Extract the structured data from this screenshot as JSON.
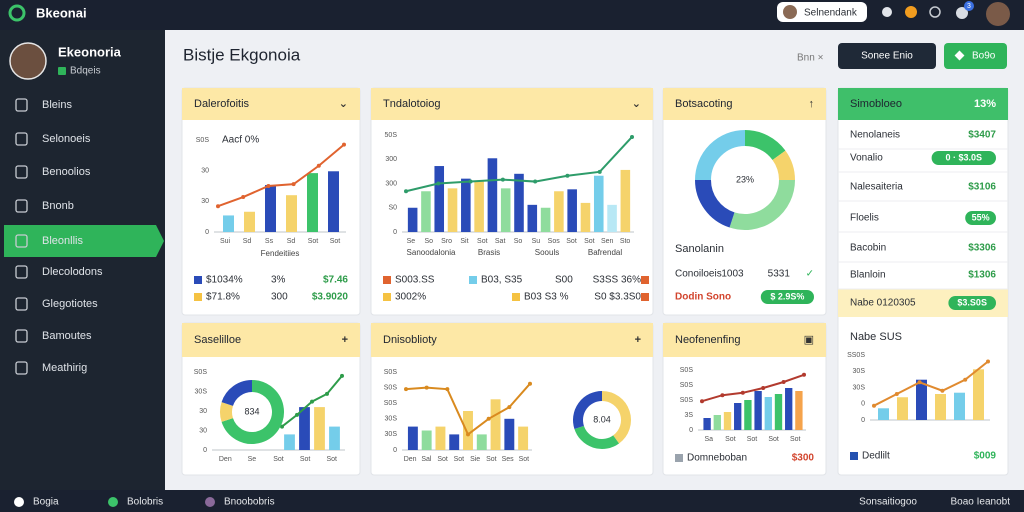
{
  "topbar": {
    "logo": "Bkeonai",
    "search": "Selnendank",
    "badge": "3"
  },
  "sidebar": {
    "user": "Ekeonoria",
    "user_sub": "Bdqeis",
    "items": [
      "Bleins",
      "Selonoeis",
      "Benoolios",
      "Bnonb",
      "Bleonllis",
      "Dlecolodons",
      "Glegotiotes",
      "Bamoutes",
      "Meathirig"
    ],
    "active": 4
  },
  "header": {
    "title": "Bistje Ekgonoia",
    "close": "Bnn ×",
    "primary": "Sonee Enio",
    "secondary": "Bo9o"
  },
  "cards": [
    {
      "title": "Dalerofoitis",
      "icon": "⌄",
      "note": "Aacf 0%",
      "chart": {
        "ylim": [
          0,
          100
        ],
        "ylabels": [
          "S0S",
          "30",
          "30",
          "0"
        ],
        "xlabels": [
          "Sui",
          "Sd",
          "Ss",
          "Sd",
          "Sot",
          "Sot"
        ],
        "xtitle": "Fendeitiies",
        "bars": [
          18,
          22,
          51,
          40,
          64,
          66
        ],
        "bar_colors": [
          "#74cdea",
          "#f5d36b",
          "#2a4bb8",
          "#f5d36b",
          "#3cc36a",
          "#2a4bb8"
        ],
        "line": [
          28,
          38,
          50,
          52,
          72,
          95
        ],
        "line_color": "#e0632f"
      },
      "legend": [
        [
          {
            "text": "$1034%",
            "chip": "#2a4bb8"
          },
          {
            "text": "3%"
          },
          {
            "text": "$7.46",
            "color": "#2e9c4a"
          }
        ],
        [
          {
            "text": "$71.8%",
            "chip": "#f5c242"
          },
          {
            "text": "300"
          },
          {
            "text": "$3.9020",
            "color": "#2e9c4a"
          }
        ]
      ]
    },
    {
      "title": "Tndalotoiog",
      "icon": "⌄",
      "chart": {
        "ylim": [
          0,
          100
        ],
        "ylabels": [
          "50S",
          "300",
          "300",
          "S0",
          "0"
        ],
        "xlabels": [
          "Se",
          "So",
          "Sro",
          "Sit",
          "Sot",
          "Sat",
          "So",
          "Su",
          "Sos",
          "Sot",
          "Sot",
          "Sen",
          "Sto"
        ],
        "sublabels": [
          "Sanoodalonia",
          "Brasis",
          "Soouls",
          "Bafrendal"
        ],
        "bars": [
          25,
          42,
          68,
          45,
          55,
          52,
          76,
          45,
          60,
          28,
          25,
          42,
          44,
          30,
          58,
          28,
          64
        ],
        "bar_colors": [
          "#2a4bb8",
          "#8fdc9d",
          "#2a4bb8",
          "#f5d36b",
          "#2a4bb8",
          "#f5d36b",
          "#2a4bb8",
          "#8fdc9d",
          "#2a4bb8",
          "#2a4bb8",
          "#8fdc9d",
          "#f5d36b",
          "#2a4bb8",
          "#f5d36b",
          "#74cdea",
          "#b8e8f5",
          "#f5d36b"
        ],
        "line": [
          42,
          50,
          52,
          54,
          52,
          58,
          62,
          98
        ],
        "line_color": "#2e9c6a"
      },
      "legend": [
        [
          {
            "text": "S003.SS",
            "chip": "#e0632f"
          },
          {
            "text": "B03, S35",
            "chip": "#74cdea"
          },
          {
            "text": "S00"
          },
          {
            "text": "S3SS 36%",
            "chip": "#e0632f"
          }
        ],
        [
          {
            "text": "3002%",
            "chip": "#f5c242"
          },
          {
            "text": "B03 S3 %",
            "chip": "#f5c242"
          },
          {
            "text": "S0 $3.3S0",
            "chip": "#e0632f"
          }
        ]
      ]
    },
    {
      "title": "Botsacoting",
      "icon": "↑",
      "donut": {
        "center": "23%",
        "values": [
          15,
          10,
          30,
          20,
          25
        ],
        "colors": [
          "#3cc36a",
          "#f5d36b",
          "#8fdc9d",
          "#2a4bb8",
          "#74cdea"
        ]
      },
      "subtitle": "Sanolanin",
      "legend": [
        [
          {
            "text": "Conoiloeis"
          },
          {
            "text": "1003"
          },
          {
            "text": "5331"
          },
          {
            "text": "✓",
            "color": "#2fb45a"
          }
        ],
        [
          {
            "text": "Dodin Sono",
            "color": "#d2452e"
          },
          {
            "text": "$ 2.9S%",
            "pill": "#2fb45a"
          }
        ]
      ]
    },
    {
      "title": "Simobloeo",
      "icon": "13%",
      "highlight_row": 6,
      "legend": [
        [
          {
            "text": "Nenolaneis"
          },
          {
            "text": "$3407",
            "color": "#2e9c4a"
          }
        ],
        [
          {
            "text": "Vonalio"
          },
          {
            "text": "0 · $3.0S",
            "pill": "#2fb45a"
          }
        ],
        [
          {
            "text": "Nalesaiteria"
          },
          {
            "text": "$3106",
            "color": "#2e9c4a"
          }
        ],
        [
          {
            "text": "Floelis"
          },
          {
            "text": "55%",
            "pill": "#2fb45a"
          }
        ],
        [
          {
            "text": "Bacobin"
          },
          {
            "text": "$3306",
            "color": "#2e9c4a"
          }
        ],
        [
          {
            "text": "Blanloin"
          },
          {
            "text": "$1306",
            "color": "#2e9c4a"
          }
        ],
        [
          {
            "text": "Nabe 0120305"
          },
          {
            "text": "$3.S0S",
            "pill": "#2fb45a"
          }
        ],
        [
          {
            "text": "Dedlilt",
            "chip": "#2451b0"
          },
          {
            "text": "$009",
            "color": "#2fb45a"
          }
        ]
      ],
      "subtitle": "Nabe SUS",
      "chart": {
        "ylim": [
          0,
          100
        ],
        "ylabels": [
          "SS0S",
          "30S",
          "30S",
          "0",
          "0"
        ],
        "xlabels": [],
        "bars": [
          18,
          35,
          62,
          40,
          42,
          78
        ],
        "bar_colors": [
          "#74cdea",
          "#f5d36b",
          "#2a4bb8",
          "#f5d36b",
          "#74cdea",
          "#f5d36b"
        ],
        "line": [
          22,
          40,
          58,
          45,
          62,
          90
        ],
        "line_color": "#e08a2f"
      }
    },
    {
      "title": "Saselilloe",
      "icon": "+",
      "donut": {
        "center": "834",
        "values": [
          70,
          10,
          20
        ],
        "colors": [
          "#3cc36a",
          "#f5d36b",
          "#2a4bb8"
        ]
      },
      "chart": {
        "ylim": [
          0,
          100
        ],
        "ylabels": [
          "S0S",
          "30S",
          "30",
          "30",
          "0"
        ],
        "xlabels": [
          "Den",
          "Se",
          "Sot",
          "Sot",
          "Sot"
        ],
        "bars": [
          20,
          55,
          55,
          30
        ],
        "bar_colors": [
          "#74cdea",
          "#2a4bb8",
          "#f5d36b",
          "#74cdea"
        ],
        "line": [
          30,
          45,
          62,
          72,
          95
        ],
        "line_color": "#2e9c4a"
      }
    },
    {
      "title": "Dnisoblioty",
      "icon": "+",
      "donut": {
        "center": "8.04",
        "values": [
          40,
          30,
          30
        ],
        "colors": [
          "#f5d36b",
          "#3cc36a",
          "#2a4bb8"
        ]
      },
      "chart": {
        "ylim": [
          0,
          100
        ],
        "ylabels": [
          "S0S",
          "S0S",
          "S0S",
          "30S",
          "30S",
          "0"
        ],
        "xlabels": [
          "Den",
          "Sal",
          "Sot",
          "Sot",
          "Sie",
          "Sot",
          "Ses",
          "Sot"
        ],
        "bars": [
          30,
          25,
          30,
          20,
          50,
          20,
          65,
          40,
          30
        ],
        "bar_colors": [
          "#2a4bb8",
          "#8fdc9d",
          "#f5d36b",
          "#2a4bb8",
          "#f5d36b",
          "#8fdc9d",
          "#f5d36b",
          "#2a4bb8",
          "#f5d36b"
        ],
        "line": [
          78,
          80,
          78,
          20,
          40,
          55,
          85
        ],
        "line_color": "#d98a1f"
      }
    },
    {
      "title": "Neofenenfing",
      "icon": "▣",
      "chart": {
        "ylim": [
          0,
          100
        ],
        "ylabels": [
          "S0S",
          "S0S",
          "S0S",
          "3S",
          "0"
        ],
        "xlabels": [
          "Sa",
          "Sot",
          "Sot",
          "Sot",
          "Sot"
        ],
        "bars": [
          20,
          25,
          30,
          45,
          50,
          65,
          55,
          60,
          70,
          65
        ],
        "bar_colors": [
          "#2a4bb8",
          "#8fdc9d",
          "#f5d36b",
          "#2a4bb8",
          "#3cc36a",
          "#2a4bb8",
          "#74cdea",
          "#3cc36a",
          "#2a4bb8",
          "#f5a34b"
        ],
        "line": [
          48,
          58,
          62,
          70,
          80,
          92
        ],
        "line_color": "#b23a2e"
      },
      "legend": [
        [
          {
            "text": "Domneboban",
            "chip": "#9aa3ad"
          },
          {
            "text": "$300",
            "color": "#d2452e"
          }
        ]
      ]
    }
  ],
  "footer": {
    "left": [
      "Bogia",
      "Bolobris",
      "Bnoobobris"
    ],
    "right": [
      "Sonsaitiogoo",
      "Boao Ieanobt"
    ]
  }
}
